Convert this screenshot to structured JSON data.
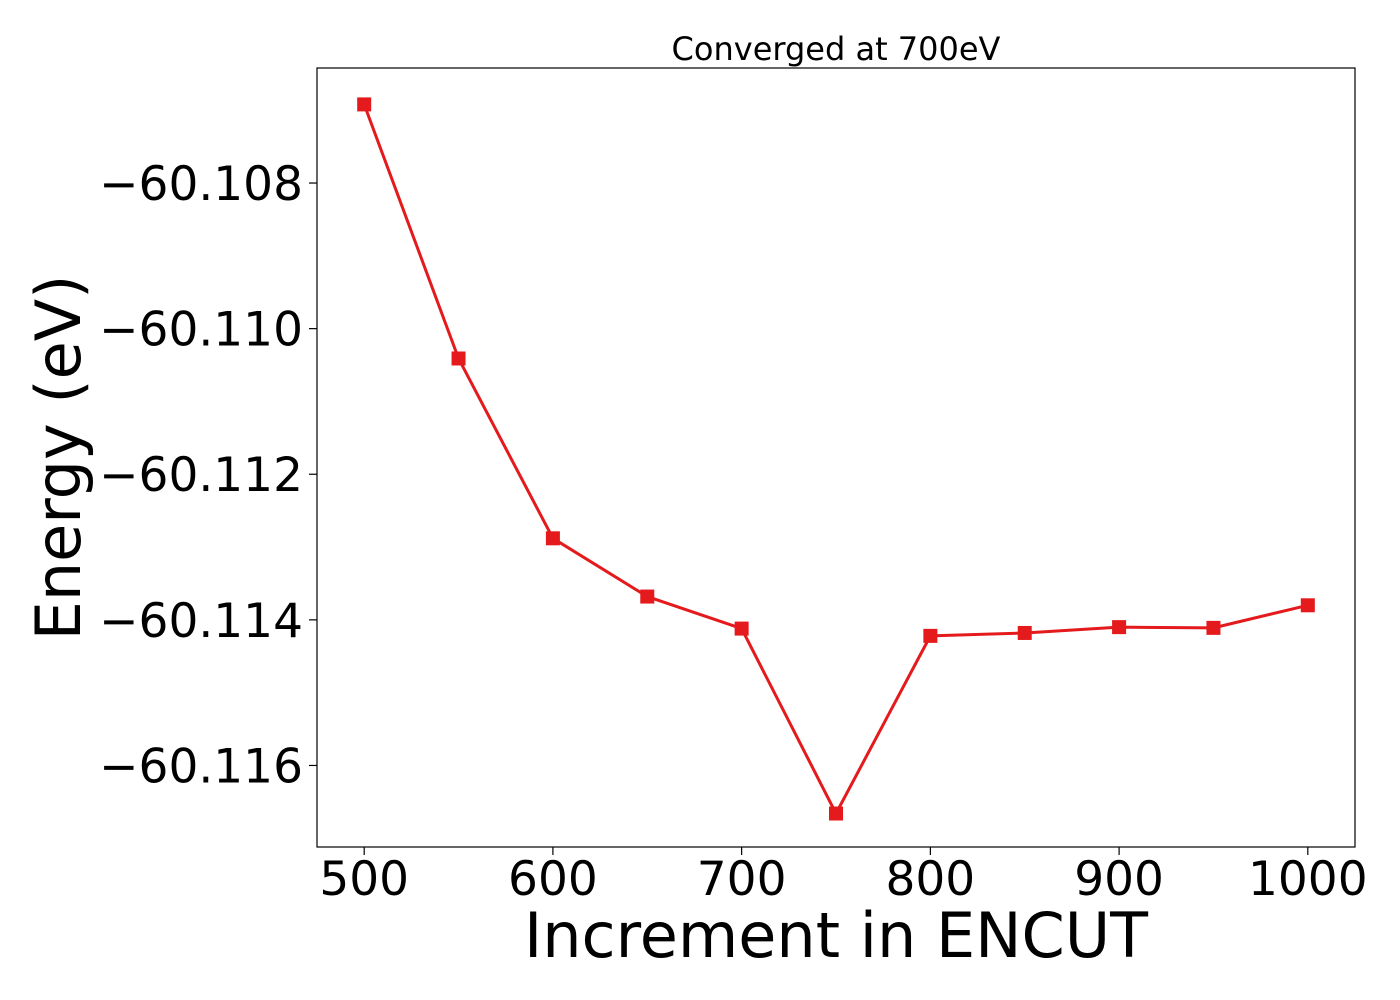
{
  "chart_data": {
    "type": "line",
    "title": "Converged at 700eV",
    "xlabel": "Increment in ENCUT",
    "ylabel": "Energy (eV)",
    "xlim": [
      475,
      1025
    ],
    "ylim": [
      -60.11712,
      -60.10642
    ],
    "x_ticks": [
      500,
      600,
      700,
      800,
      900,
      1000
    ],
    "x_tick_labels": [
      "500",
      "600",
      "700",
      "800",
      "900",
      "1000"
    ],
    "y_ticks": [
      -60.108,
      -60.11,
      -60.112,
      -60.114,
      -60.116
    ],
    "y_tick_labels": [
      "−60.108",
      "−60.110",
      "−60.112",
      "−60.114",
      "−60.116"
    ],
    "grid": false,
    "series": [
      {
        "color": "#e41a1c",
        "marker": "square",
        "x": [
          500,
          550,
          600,
          650,
          700,
          750,
          800,
          850,
          900,
          950,
          1000
        ],
        "y": [
          -60.10692,
          -60.11041,
          -60.11288,
          -60.11368,
          -60.11412,
          -60.11666,
          -60.11422,
          -60.11418,
          -60.1141,
          -60.11411,
          -60.1138
        ]
      }
    ]
  }
}
